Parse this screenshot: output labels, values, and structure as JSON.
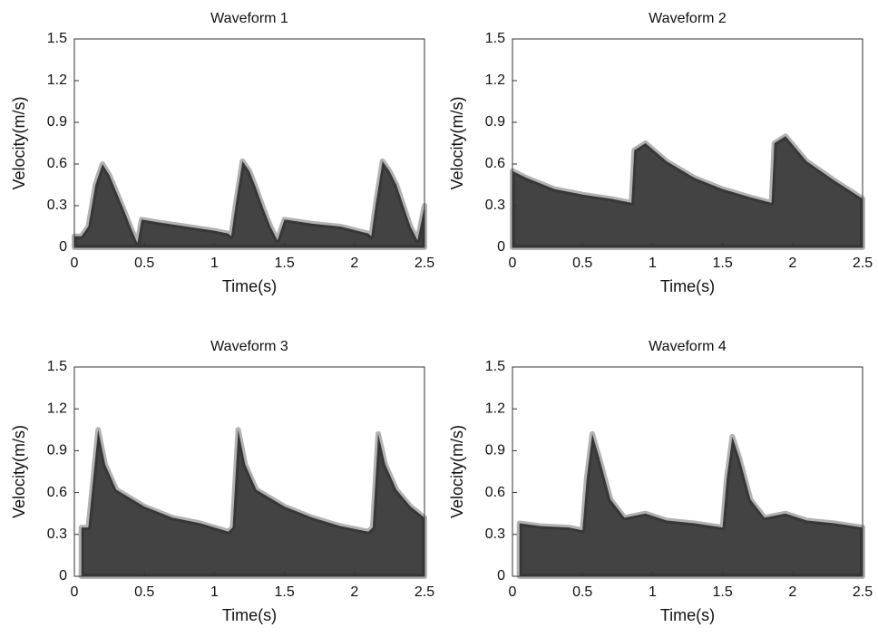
{
  "chart_data": [
    {
      "type": "area",
      "title": "Waveform 1",
      "x_label": "Time(s)",
      "y_label": "Velocity(m/s)",
      "color": "#222222",
      "x": [
        0,
        0.05,
        0.1,
        0.15,
        0.2,
        0.25,
        0.3,
        0.35,
        0.4,
        0.45,
        0.48,
        0.6,
        0.8,
        1.0,
        1.1,
        1.12,
        1.15,
        1.2,
        1.25,
        1.3,
        1.35,
        1.4,
        1.45,
        1.5,
        1.7,
        1.9,
        2.1,
        2.12,
        2.15,
        2.2,
        2.25,
        2.3,
        2.35,
        2.4,
        2.45,
        2.5
      ],
      "values": [
        0.08,
        0.08,
        0.15,
        0.45,
        0.6,
        0.52,
        0.4,
        0.28,
        0.15,
        0.03,
        0.2,
        0.18,
        0.15,
        0.12,
        0.1,
        0.08,
        0.3,
        0.62,
        0.55,
        0.42,
        0.28,
        0.15,
        0.05,
        0.2,
        0.17,
        0.15,
        0.1,
        0.08,
        0.3,
        0.62,
        0.55,
        0.45,
        0.3,
        0.15,
        0.05,
        0.3
      ],
      "xlim": [
        0,
        2.5
      ],
      "ylim": [
        0,
        1.5
      ],
      "xticks": [
        0,
        0.5,
        1,
        1.5,
        2,
        2.5
      ],
      "yticks": [
        0,
        0.3,
        0.6,
        0.9,
        1.2,
        1.5
      ]
    },
    {
      "type": "area",
      "title": "Waveform 2",
      "x_label": "Time(s)",
      "y_label": "Velocity(m/s)",
      "color": "#222222",
      "x": [
        0,
        0.1,
        0.3,
        0.5,
        0.7,
        0.85,
        0.87,
        0.95,
        1.1,
        1.3,
        1.5,
        1.7,
        1.85,
        1.87,
        1.95,
        2.1,
        2.3,
        2.5
      ],
      "values": [
        0.55,
        0.5,
        0.42,
        0.38,
        0.35,
        0.32,
        0.7,
        0.75,
        0.62,
        0.5,
        0.42,
        0.36,
        0.32,
        0.75,
        0.8,
        0.62,
        0.48,
        0.35
      ],
      "xlim": [
        0,
        2.5
      ],
      "ylim": [
        0,
        1.5
      ],
      "xticks": [
        0,
        0.5,
        1,
        1.5,
        2,
        2.5
      ],
      "yticks": [
        0,
        0.3,
        0.6,
        0.9,
        1.2,
        1.5
      ]
    },
    {
      "type": "area",
      "title": "Waveform 3",
      "x_label": "Time(s)",
      "y_label": "Velocity(m/s)",
      "color": "#222222",
      "x": [
        0.05,
        0.1,
        0.17,
        0.22,
        0.3,
        0.5,
        0.7,
        0.9,
        1.1,
        1.13,
        1.17,
        1.22,
        1.3,
        1.5,
        1.7,
        1.9,
        2.1,
        2.13,
        2.17,
        2.22,
        2.3,
        2.4,
        2.5
      ],
      "values": [
        0.35,
        0.35,
        1.05,
        0.8,
        0.62,
        0.5,
        0.42,
        0.38,
        0.32,
        0.35,
        1.05,
        0.8,
        0.62,
        0.5,
        0.42,
        0.36,
        0.32,
        0.35,
        1.02,
        0.8,
        0.62,
        0.5,
        0.42
      ],
      "xlim": [
        0,
        2.5
      ],
      "ylim": [
        0,
        1.5
      ],
      "xticks": [
        0,
        0.5,
        1,
        1.5,
        2,
        2.5
      ],
      "yticks": [
        0,
        0.3,
        0.6,
        0.9,
        1.2,
        1.5
      ]
    },
    {
      "type": "area",
      "title": "Waveform 4",
      "x_label": "Time(s)",
      "y_label": "Velocity(m/s)",
      "color": "#222222",
      "x": [
        0.05,
        0.2,
        0.4,
        0.5,
        0.53,
        0.57,
        0.62,
        0.7,
        0.8,
        0.95,
        1.1,
        1.3,
        1.5,
        1.53,
        1.57,
        1.62,
        1.7,
        1.8,
        1.95,
        2.1,
        2.3,
        2.5
      ],
      "values": [
        0.38,
        0.36,
        0.35,
        0.33,
        0.7,
        1.02,
        0.85,
        0.55,
        0.42,
        0.45,
        0.4,
        0.38,
        0.35,
        0.7,
        1.0,
        0.85,
        0.55,
        0.42,
        0.45,
        0.4,
        0.38,
        0.35
      ],
      "xlim": [
        0,
        2.5
      ],
      "ylim": [
        0,
        1.5
      ],
      "xticks": [
        0,
        0.5,
        1,
        1.5,
        2,
        2.5
      ],
      "yticks": [
        0,
        0.3,
        0.6,
        0.9,
        1.2,
        1.5
      ]
    }
  ]
}
